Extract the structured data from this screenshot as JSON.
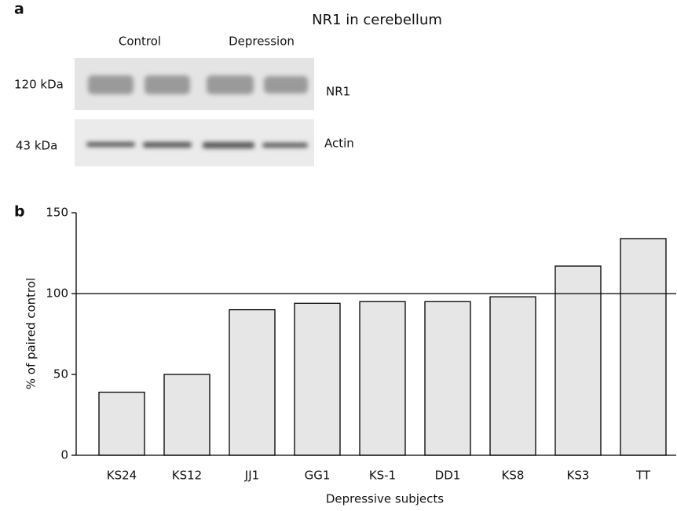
{
  "panel_a": {
    "label": "a",
    "title": "NR1 in cerebellum",
    "lanes": [
      "Control",
      "Depression"
    ],
    "markers": [
      "120 kDa",
      "43 kDa"
    ],
    "bands": [
      "NR1",
      "Actin"
    ]
  },
  "chart_data": {
    "type": "bar",
    "panel_label": "b",
    "categories": [
      "KS24",
      "KS12",
      "JJ1",
      "GG1",
      "KS-1",
      "DD1",
      "KS8",
      "KS3",
      "TT"
    ],
    "values": [
      39,
      50,
      90,
      94,
      95,
      95,
      98,
      117,
      134
    ],
    "color": "#e6e6e6",
    "ylim": [
      0,
      150
    ],
    "yticks": [
      0,
      50,
      100,
      150
    ],
    "hline": 100,
    "xlabel": "Depressive subjects",
    "ylabel": "% of paired control"
  }
}
